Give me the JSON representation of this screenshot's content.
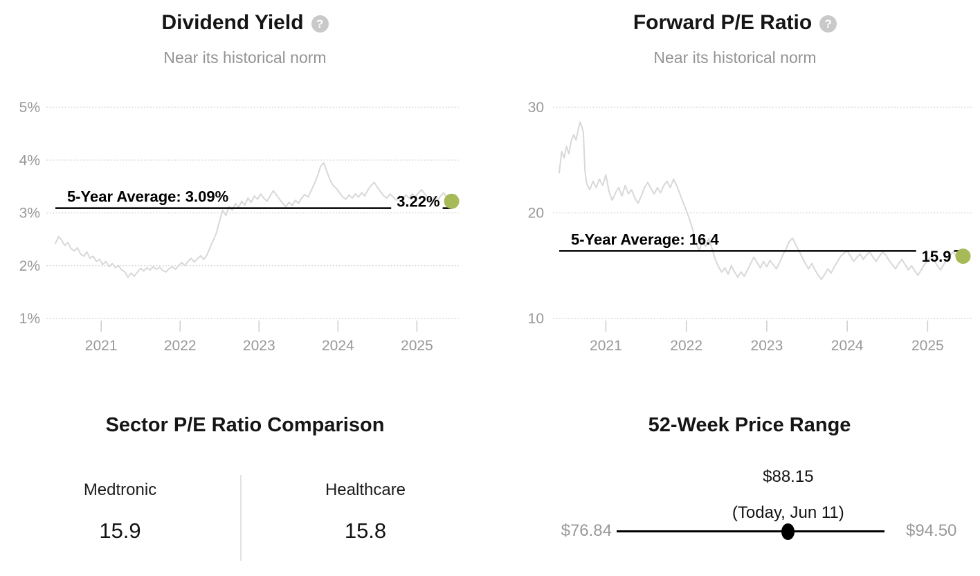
{
  "ui": {
    "help_glyph": "?",
    "colors": {
      "accent_green": "#a6ba58",
      "series_gray": "#d8d8d8",
      "grid_gray": "#d9d9d9",
      "tick_gray": "#cccccc",
      "axis_text": "#989898",
      "avg_line": "#000000"
    }
  },
  "chart_data": [
    {
      "type": "line",
      "title": "Dividend Yield",
      "subtitle": "Near its historical norm",
      "average": 3.09,
      "avg_label": "5-Year Average: 3.09%",
      "current": 3.22,
      "current_label": "3.22%",
      "xlim": [
        2020.42,
        2025.47
      ],
      "ylim": [
        1,
        5
      ],
      "yticks": [
        {
          "value": 5,
          "label": "5%"
        },
        {
          "value": 4,
          "label": "4%"
        },
        {
          "value": 3,
          "label": "3%"
        },
        {
          "value": 2,
          "label": "2%"
        },
        {
          "value": 1,
          "label": "1%"
        }
      ],
      "xticks": [
        2021,
        2022,
        2023,
        2024,
        2025
      ],
      "series": [
        [
          2020.42,
          2.42
        ],
        [
          2020.46,
          2.55
        ],
        [
          2020.5,
          2.48
        ],
        [
          2020.54,
          2.38
        ],
        [
          2020.58,
          2.44
        ],
        [
          2020.62,
          2.32
        ],
        [
          2020.66,
          2.28
        ],
        [
          2020.7,
          2.34
        ],
        [
          2020.74,
          2.22
        ],
        [
          2020.78,
          2.18
        ],
        [
          2020.82,
          2.26
        ],
        [
          2020.86,
          2.14
        ],
        [
          2020.9,
          2.18
        ],
        [
          2020.94,
          2.08
        ],
        [
          2020.98,
          2.12
        ],
        [
          2021.02,
          2.02
        ],
        [
          2021.06,
          2.08
        ],
        [
          2021.1,
          1.98
        ],
        [
          2021.14,
          2.04
        ],
        [
          2021.18,
          1.96
        ],
        [
          2021.22,
          2.0
        ],
        [
          2021.26,
          1.92
        ],
        [
          2021.3,
          1.88
        ],
        [
          2021.34,
          1.78
        ],
        [
          2021.38,
          1.86
        ],
        [
          2021.42,
          1.8
        ],
        [
          2021.46,
          1.88
        ],
        [
          2021.5,
          1.95
        ],
        [
          2021.54,
          1.9
        ],
        [
          2021.58,
          1.96
        ],
        [
          2021.62,
          1.92
        ],
        [
          2021.66,
          1.98
        ],
        [
          2021.7,
          1.93
        ],
        [
          2021.74,
          1.97
        ],
        [
          2021.78,
          1.91
        ],
        [
          2021.82,
          1.88
        ],
        [
          2021.86,
          1.94
        ],
        [
          2021.9,
          1.98
        ],
        [
          2021.94,
          1.93
        ],
        [
          2021.98,
          2.0
        ],
        [
          2022.02,
          2.06
        ],
        [
          2022.06,
          2.0
        ],
        [
          2022.1,
          2.08
        ],
        [
          2022.14,
          2.14
        ],
        [
          2022.18,
          2.07
        ],
        [
          2022.22,
          2.13
        ],
        [
          2022.26,
          2.19
        ],
        [
          2022.3,
          2.12
        ],
        [
          2022.34,
          2.2
        ],
        [
          2022.38,
          2.35
        ],
        [
          2022.42,
          2.48
        ],
        [
          2022.46,
          2.62
        ],
        [
          2022.5,
          2.85
        ],
        [
          2022.54,
          3.05
        ],
        [
          2022.58,
          2.95
        ],
        [
          2022.62,
          3.12
        ],
        [
          2022.66,
          3.05
        ],
        [
          2022.7,
          3.18
        ],
        [
          2022.74,
          3.1
        ],
        [
          2022.78,
          3.22
        ],
        [
          2022.82,
          3.15
        ],
        [
          2022.86,
          3.28
        ],
        [
          2022.9,
          3.2
        ],
        [
          2022.94,
          3.32
        ],
        [
          2022.98,
          3.26
        ],
        [
          2023.02,
          3.36
        ],
        [
          2023.06,
          3.28
        ],
        [
          2023.1,
          3.22
        ],
        [
          2023.14,
          3.32
        ],
        [
          2023.18,
          3.42
        ],
        [
          2023.22,
          3.34
        ],
        [
          2023.26,
          3.26
        ],
        [
          2023.3,
          3.18
        ],
        [
          2023.34,
          3.12
        ],
        [
          2023.38,
          3.2
        ],
        [
          2023.42,
          3.14
        ],
        [
          2023.46,
          3.24
        ],
        [
          2023.5,
          3.18
        ],
        [
          2023.54,
          3.28
        ],
        [
          2023.58,
          3.35
        ],
        [
          2023.62,
          3.3
        ],
        [
          2023.66,
          3.42
        ],
        [
          2023.7,
          3.55
        ],
        [
          2023.74,
          3.7
        ],
        [
          2023.78,
          3.88
        ],
        [
          2023.82,
          3.95
        ],
        [
          2023.86,
          3.78
        ],
        [
          2023.9,
          3.62
        ],
        [
          2023.94,
          3.52
        ],
        [
          2023.98,
          3.46
        ],
        [
          2024.02,
          3.38
        ],
        [
          2024.06,
          3.3
        ],
        [
          2024.1,
          3.26
        ],
        [
          2024.14,
          3.34
        ],
        [
          2024.18,
          3.28
        ],
        [
          2024.22,
          3.36
        ],
        [
          2024.26,
          3.3
        ],
        [
          2024.3,
          3.38
        ],
        [
          2024.34,
          3.32
        ],
        [
          2024.38,
          3.44
        ],
        [
          2024.42,
          3.52
        ],
        [
          2024.46,
          3.58
        ],
        [
          2024.5,
          3.48
        ],
        [
          2024.54,
          3.4
        ],
        [
          2024.58,
          3.32
        ],
        [
          2024.62,
          3.28
        ],
        [
          2024.66,
          3.36
        ],
        [
          2024.7,
          3.3
        ],
        [
          2024.74,
          3.24
        ],
        [
          2024.78,
          3.32
        ],
        [
          2024.82,
          3.26
        ],
        [
          2024.86,
          3.34
        ],
        [
          2024.9,
          3.28
        ],
        [
          2024.94,
          3.36
        ],
        [
          2024.98,
          3.3
        ],
        [
          2025.02,
          3.38
        ],
        [
          2025.06,
          3.44
        ],
        [
          2025.1,
          3.36
        ],
        [
          2025.14,
          3.28
        ],
        [
          2025.18,
          3.22
        ],
        [
          2025.22,
          3.3
        ],
        [
          2025.26,
          3.24
        ],
        [
          2025.3,
          3.32
        ],
        [
          2025.34,
          3.38
        ],
        [
          2025.38,
          3.28
        ],
        [
          2025.42,
          3.25
        ],
        [
          2025.44,
          3.22
        ]
      ]
    },
    {
      "type": "line",
      "title": "Forward P/E Ratio",
      "subtitle": "Near its historical norm",
      "average": 16.4,
      "avg_label": "5-Year Average: 16.4",
      "current": 15.9,
      "current_label": "15.9",
      "xlim": [
        2020.42,
        2025.47
      ],
      "ylim": [
        10,
        30
      ],
      "yticks": [
        {
          "value": 30,
          "label": "30"
        },
        {
          "value": 20,
          "label": "20"
        },
        {
          "value": 10,
          "label": "10"
        }
      ],
      "xticks": [
        2021,
        2022,
        2023,
        2024,
        2025
      ],
      "series": [
        [
          2020.42,
          23.8
        ],
        [
          2020.45,
          25.8
        ],
        [
          2020.48,
          25.2
        ],
        [
          2020.51,
          26.3
        ],
        [
          2020.54,
          25.6
        ],
        [
          2020.57,
          26.8
        ],
        [
          2020.6,
          27.4
        ],
        [
          2020.63,
          26.9
        ],
        [
          2020.66,
          28.0
        ],
        [
          2020.68,
          28.6
        ],
        [
          2020.7,
          28.2
        ],
        [
          2020.72,
          27.6
        ],
        [
          2020.74,
          24.0
        ],
        [
          2020.76,
          22.8
        ],
        [
          2020.8,
          22.2
        ],
        [
          2020.84,
          23.0
        ],
        [
          2020.88,
          22.4
        ],
        [
          2020.92,
          23.2
        ],
        [
          2020.96,
          22.6
        ],
        [
          2021.0,
          23.6
        ],
        [
          2021.04,
          22.0
        ],
        [
          2021.08,
          21.2
        ],
        [
          2021.12,
          21.9
        ],
        [
          2021.16,
          22.4
        ],
        [
          2021.2,
          21.6
        ],
        [
          2021.24,
          22.6
        ],
        [
          2021.28,
          21.8
        ],
        [
          2021.32,
          22.2
        ],
        [
          2021.36,
          21.4
        ],
        [
          2021.4,
          20.9
        ],
        [
          2021.44,
          21.6
        ],
        [
          2021.48,
          22.4
        ],
        [
          2021.52,
          22.9
        ],
        [
          2021.56,
          22.3
        ],
        [
          2021.6,
          21.8
        ],
        [
          2021.64,
          22.4
        ],
        [
          2021.68,
          21.9
        ],
        [
          2021.72,
          22.6
        ],
        [
          2021.76,
          23.0
        ],
        [
          2021.8,
          22.4
        ],
        [
          2021.84,
          23.2
        ],
        [
          2021.88,
          22.6
        ],
        [
          2021.92,
          21.8
        ],
        [
          2021.96,
          21.0
        ],
        [
          2022.0,
          20.2
        ],
        [
          2022.04,
          19.4
        ],
        [
          2022.08,
          18.4
        ],
        [
          2022.12,
          17.2
        ],
        [
          2022.16,
          16.4
        ],
        [
          2022.2,
          17.4
        ],
        [
          2022.24,
          16.8
        ],
        [
          2022.28,
          17.6
        ],
        [
          2022.32,
          16.6
        ],
        [
          2022.36,
          15.6
        ],
        [
          2022.4,
          14.9
        ],
        [
          2022.44,
          14.4
        ],
        [
          2022.48,
          14.8
        ],
        [
          2022.52,
          14.2
        ],
        [
          2022.56,
          15.0
        ],
        [
          2022.6,
          14.4
        ],
        [
          2022.64,
          13.9
        ],
        [
          2022.68,
          14.4
        ],
        [
          2022.72,
          14.0
        ],
        [
          2022.76,
          14.6
        ],
        [
          2022.8,
          15.2
        ],
        [
          2022.84,
          15.8
        ],
        [
          2022.88,
          15.3
        ],
        [
          2022.92,
          14.8
        ],
        [
          2022.96,
          15.4
        ],
        [
          2023.0,
          14.9
        ],
        [
          2023.04,
          15.5
        ],
        [
          2023.08,
          15.1
        ],
        [
          2023.12,
          14.7
        ],
        [
          2023.16,
          15.3
        ],
        [
          2023.2,
          16.0
        ],
        [
          2023.24,
          16.6
        ],
        [
          2023.28,
          17.3
        ],
        [
          2023.32,
          17.6
        ],
        [
          2023.36,
          17.0
        ],
        [
          2023.4,
          16.4
        ],
        [
          2023.44,
          15.8
        ],
        [
          2023.48,
          15.2
        ],
        [
          2023.52,
          14.7
        ],
        [
          2023.56,
          15.2
        ],
        [
          2023.6,
          14.6
        ],
        [
          2023.64,
          14.1
        ],
        [
          2023.68,
          13.7
        ],
        [
          2023.72,
          14.2
        ],
        [
          2023.76,
          14.7
        ],
        [
          2023.8,
          14.3
        ],
        [
          2023.84,
          14.9
        ],
        [
          2023.88,
          15.4
        ],
        [
          2023.92,
          15.9
        ],
        [
          2023.96,
          16.2
        ],
        [
          2024.0,
          16.4
        ],
        [
          2024.04,
          15.9
        ],
        [
          2024.08,
          15.4
        ],
        [
          2024.12,
          15.8
        ],
        [
          2024.16,
          16.1
        ],
        [
          2024.2,
          15.6
        ],
        [
          2024.24,
          16.0
        ],
        [
          2024.28,
          16.3
        ],
        [
          2024.32,
          15.8
        ],
        [
          2024.36,
          15.4
        ],
        [
          2024.4,
          15.9
        ],
        [
          2024.44,
          16.3
        ],
        [
          2024.48,
          16.0
        ],
        [
          2024.52,
          15.5
        ],
        [
          2024.56,
          15.1
        ],
        [
          2024.6,
          14.7
        ],
        [
          2024.64,
          15.2
        ],
        [
          2024.68,
          15.6
        ],
        [
          2024.72,
          15.1
        ],
        [
          2024.76,
          14.6
        ],
        [
          2024.8,
          15.0
        ],
        [
          2024.84,
          14.5
        ],
        [
          2024.88,
          14.1
        ],
        [
          2024.92,
          14.6
        ],
        [
          2024.96,
          15.1
        ],
        [
          2025.0,
          15.5
        ],
        [
          2025.04,
          15.9
        ],
        [
          2025.08,
          15.5
        ],
        [
          2025.12,
          15.0
        ],
        [
          2025.16,
          14.6
        ],
        [
          2025.2,
          15.1
        ],
        [
          2025.24,
          15.6
        ],
        [
          2025.28,
          16.0
        ],
        [
          2025.32,
          16.3
        ],
        [
          2025.36,
          15.8
        ],
        [
          2025.4,
          15.5
        ],
        [
          2025.44,
          15.9
        ]
      ]
    },
    {
      "type": "table",
      "title": "Sector P/E Ratio Comparison",
      "items": [
        {
          "name": "Medtronic",
          "value": "15.9"
        },
        {
          "name": "Healthcare",
          "value": "15.8"
        }
      ]
    },
    {
      "type": "range",
      "title": "52-Week Price Range",
      "low": 76.84,
      "high": 94.5,
      "current": 88.15,
      "low_label": "$76.84",
      "high_label": "$94.50",
      "current_label": "$88.15",
      "date_label": "(Today, Jun 11)"
    }
  ]
}
